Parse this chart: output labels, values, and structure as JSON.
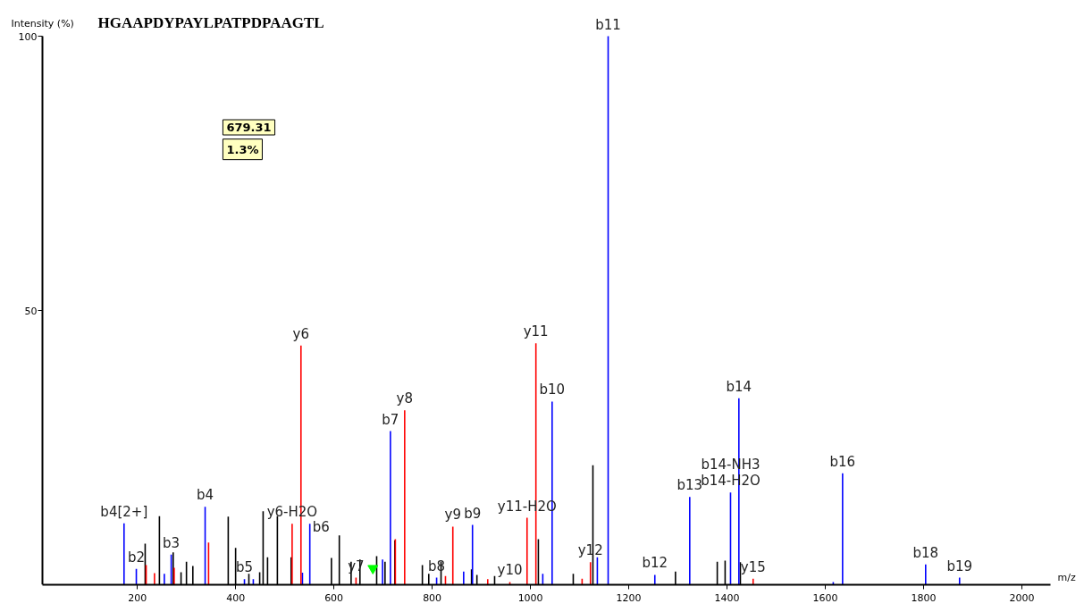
{
  "chart_data": {
    "type": "bar",
    "title": "HGAAPDYPAYLPATPDPAAGTL",
    "ylabel": "Intensity (%)",
    "xlabel": "m/z",
    "xlim": [
      7,
      2058
    ],
    "ylim": [
      0,
      100
    ],
    "xticks": [
      200,
      400,
      600,
      800,
      1000,
      1200,
      1400,
      1600,
      1800,
      2000
    ],
    "yticks": [
      50,
      100
    ],
    "grid": false,
    "series": [
      {
        "color": "#000000",
        "x": [
          216,
          245,
          273,
          289,
          300,
          313,
          385,
          400,
          427,
          449,
          456,
          465,
          485,
          513,
          595,
          611,
          635,
          653,
          687,
          704,
          724,
          780,
          793,
          818,
          880,
          891,
          927,
          1016,
          1087,
          1127,
          1295,
          1380,
          1396,
          1427
        ],
        "values": [
          7.5,
          12.5,
          5.9,
          2.3,
          4.2,
          3.4,
          12.4,
          6.7,
          2.0,
          2.3,
          13.4,
          5.0,
          12.5,
          5.0,
          4.9,
          9.0,
          4.2,
          4.6,
          5.2,
          4.2,
          8.1,
          3.6,
          2.0,
          4.2,
          2.8,
          1.8,
          1.6,
          8.3,
          2.0,
          21.8,
          2.4,
          4.2,
          4.4,
          4.1
        ]
      },
      {
        "color": "#0000ff",
        "x": [
          173,
          198,
          255,
          269,
          338,
          418,
          436,
          536,
          551,
          699,
          715,
          809,
          864,
          882,
          1025,
          1044,
          1136,
          1158,
          1253,
          1324,
          1407,
          1424,
          1616,
          1635,
          1804,
          1873
        ],
        "values": [
          11.2,
          2.9,
          2.0,
          5.5,
          14.2,
          1.0,
          1.0,
          2.2,
          11.1,
          4.6,
          28.0,
          1.3,
          2.4,
          10.9,
          2.0,
          33.4,
          5.0,
          100,
          1.8,
          16.0,
          16.8,
          34.0,
          0.5,
          20.3,
          3.7,
          1.3
        ]
      },
      {
        "color": "#ff0000",
        "x": [
          218,
          235,
          275,
          345,
          515,
          533,
          645,
          725,
          744,
          827,
          842,
          913,
          958,
          993,
          1011,
          1105,
          1122,
          1453
        ],
        "values": [
          3.6,
          2.1,
          3.1,
          7.7,
          11.1,
          43.6,
          1.3,
          8.3,
          31.8,
          1.6,
          10.6,
          1.0,
          0.5,
          12.2,
          44.0,
          1.1,
          4.1,
          1.1
        ]
      },
      {
        "type": "scatter",
        "color": "#00ff00",
        "marker": "triangle",
        "x": [
          679.31
        ],
        "values": [
          3
        ]
      }
    ],
    "annotations": [
      {
        "text": "b11",
        "x": 1158,
        "y": 100
      },
      {
        "text": "y11",
        "x": 1011,
        "y": 44.0
      },
      {
        "text": "y6",
        "x": 533,
        "y": 43.6
      },
      {
        "text": "b14",
        "x": 1424,
        "y": 34.0
      },
      {
        "text": "b10",
        "x": 1044,
        "y": 33.4
      },
      {
        "text": "y8",
        "x": 744,
        "y": 31.8
      },
      {
        "text": "b7",
        "x": 715,
        "y": 28.0
      },
      {
        "text": "b16",
        "x": 1635,
        "y": 20.3
      },
      {
        "text": "b14-H2O",
        "x": 1407,
        "y": 16.8
      },
      {
        "text": "b14-NH3",
        "x": 1407,
        "y": 16.8
      },
      {
        "text": "b13",
        "x": 1324,
        "y": 16.0
      },
      {
        "text": "b4",
        "x": 338,
        "y": 14.2
      },
      {
        "text": "y11-H2O",
        "x": 993,
        "y": 12.2
      },
      {
        "text": "b4[2+]",
        "x": 173,
        "y": 11.2
      },
      {
        "text": "y6-H2O",
        "x": 515,
        "y": 11.1
      },
      {
        "text": "b6",
        "x": 551,
        "y": 11.1
      },
      {
        "text": "b9",
        "x": 882,
        "y": 10.9
      },
      {
        "text": "y9",
        "x": 842,
        "y": 10.6
      },
      {
        "text": "b3",
        "x": 269,
        "y": 5.5
      },
      {
        "text": "y12",
        "x": 1122,
        "y": 4.1
      },
      {
        "text": "b18",
        "x": 1804,
        "y": 3.7
      },
      {
        "text": "b2",
        "x": 198,
        "y": 2.9
      },
      {
        "text": "b12",
        "x": 1253,
        "y": 1.8
      },
      {
        "text": "y7",
        "x": 645,
        "y": 1.3
      },
      {
        "text": "b8",
        "x": 809,
        "y": 1.3
      },
      {
        "text": "b19",
        "x": 1873,
        "y": 1.3
      },
      {
        "text": "y15",
        "x": 1453,
        "y": 1.1
      },
      {
        "text": "b5",
        "x": 418,
        "y": 1.0
      },
      {
        "text": "y10",
        "x": 958,
        "y": 0.5
      },
      "679.31",
      "1.3%"
    ]
  }
}
